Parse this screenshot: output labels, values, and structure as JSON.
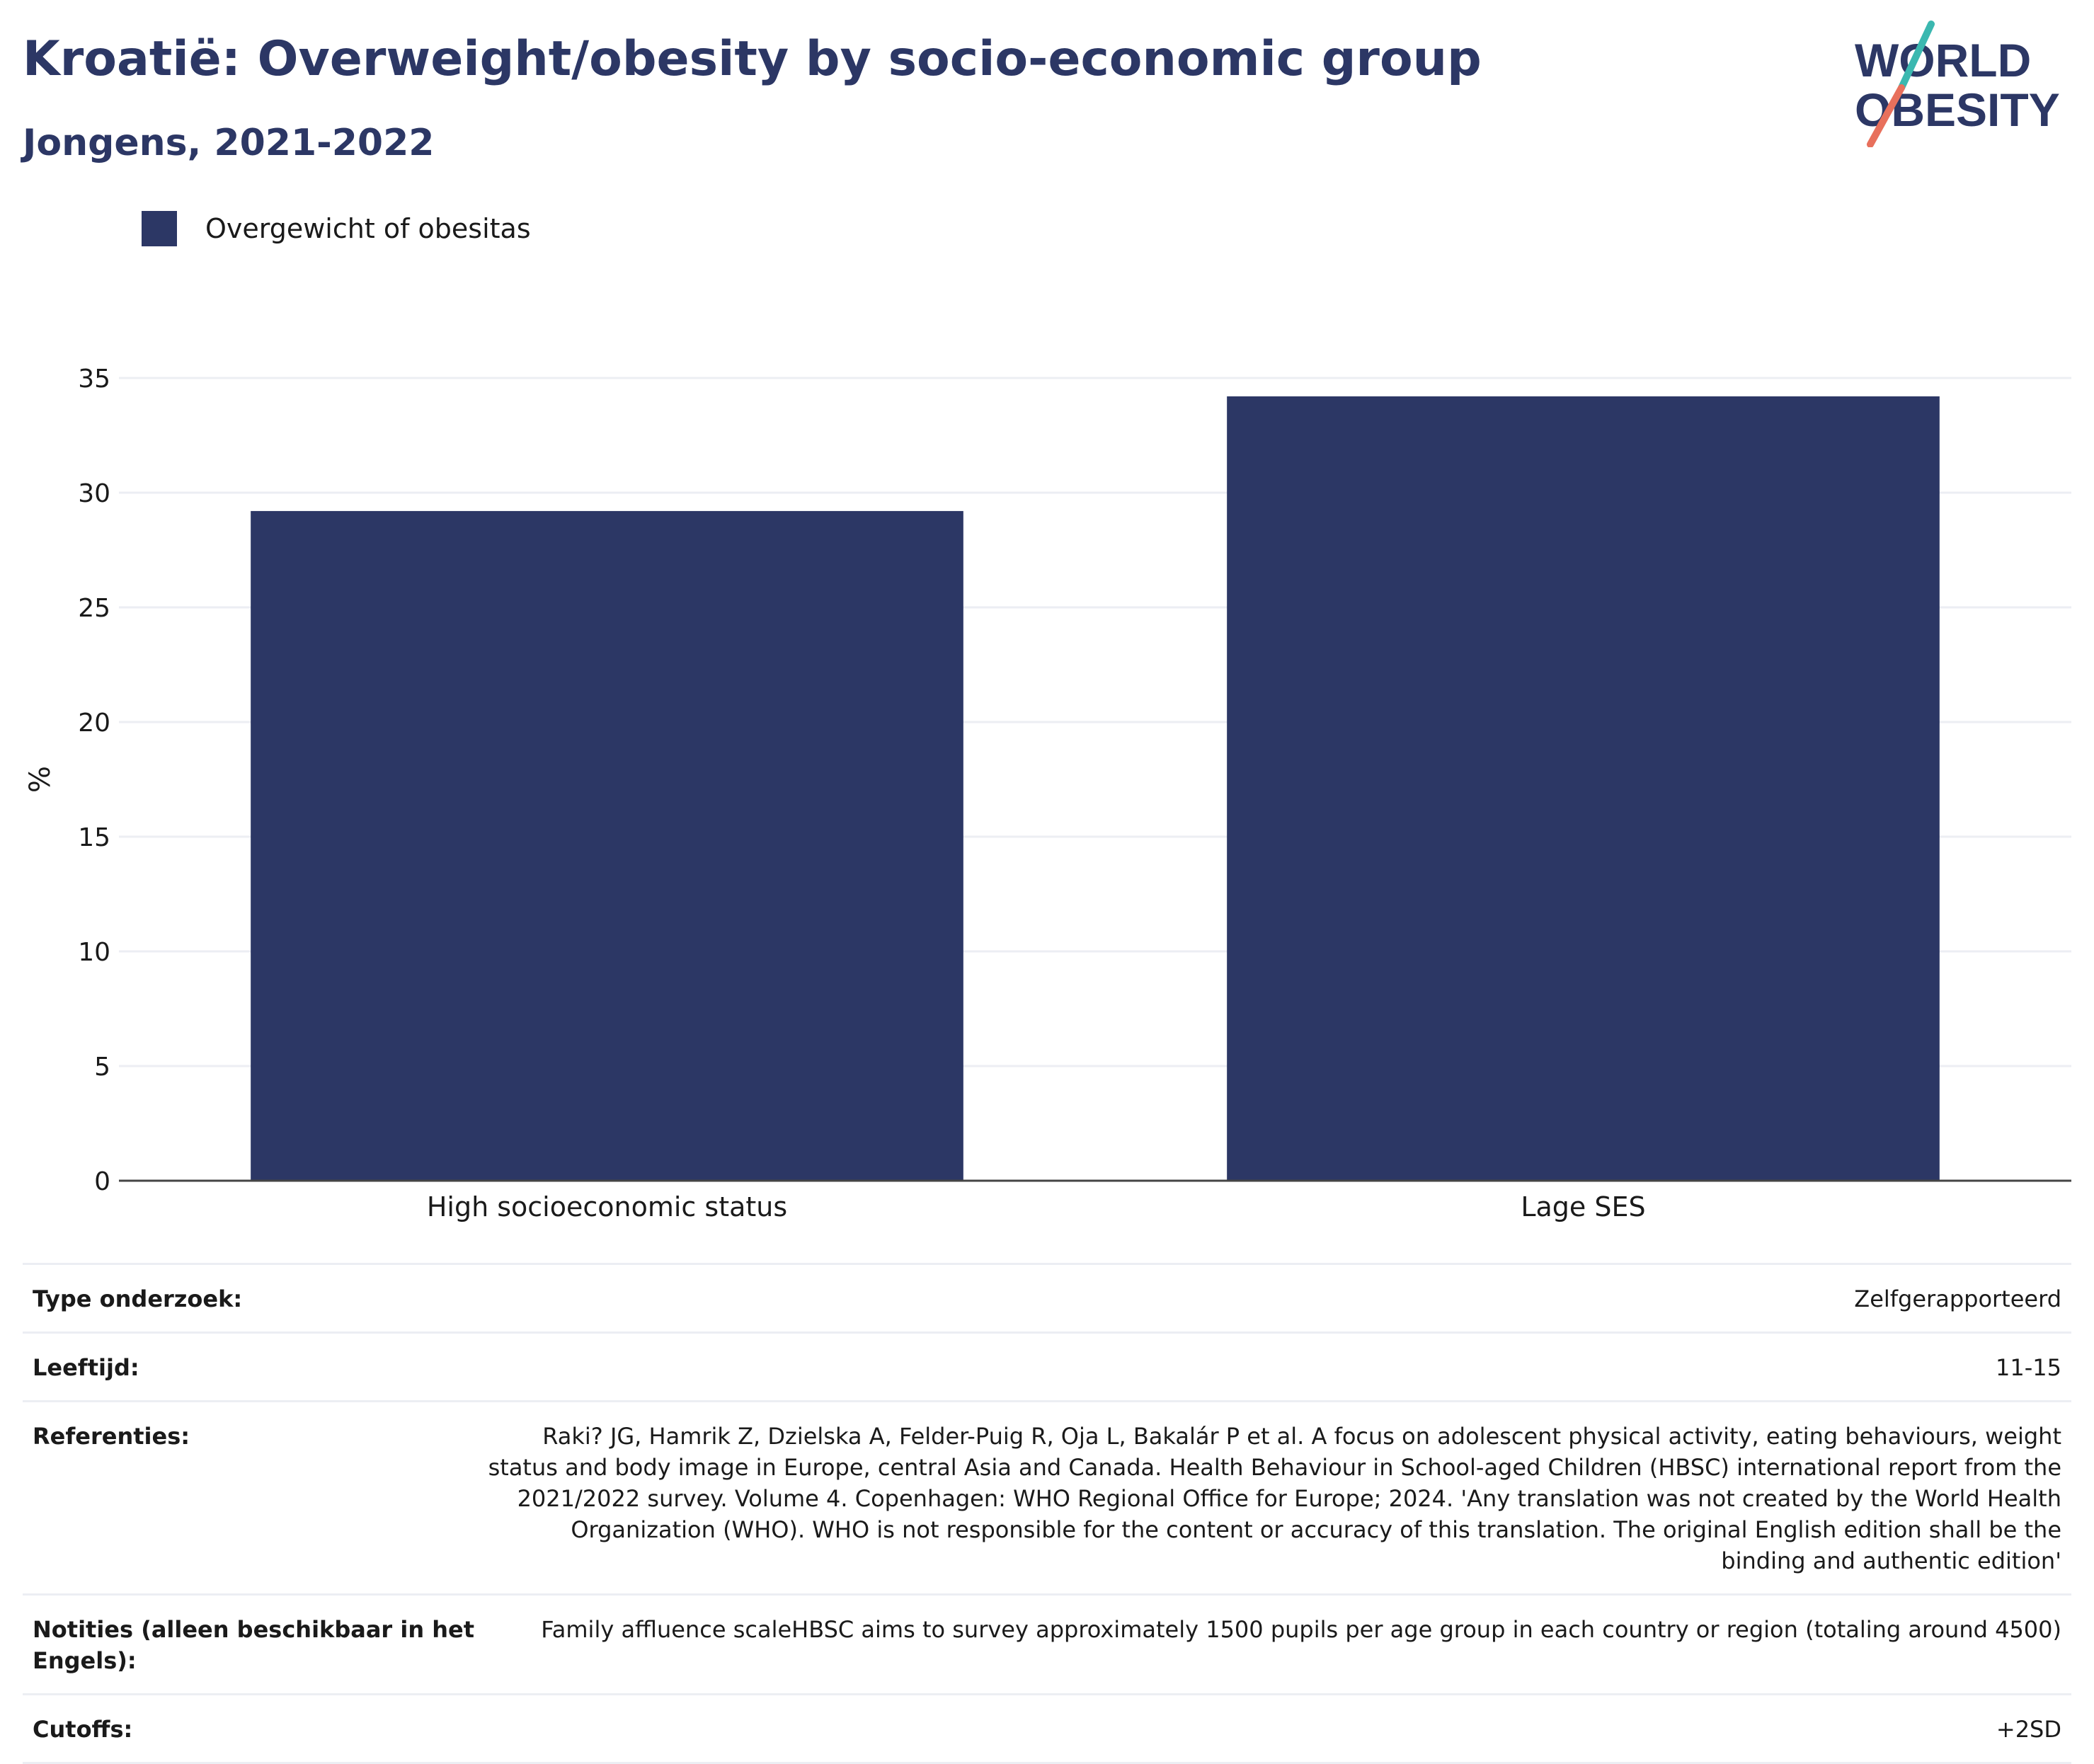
{
  "header": {
    "title": "Kroatië: Overweight/obesity by socio-economic group",
    "subtitle": "Jongens, 2021-2022"
  },
  "logo": {
    "line1": "WORLD",
    "line2": "OBESITY",
    "accent_teal": "#3bb8b0",
    "accent_coral": "#e8705c"
  },
  "legend": {
    "label": "Overgewicht of obesitas"
  },
  "colors": {
    "bar": "#2c3765",
    "text": "#2c3765",
    "grid": "#eceef3"
  },
  "chart_data": {
    "type": "bar",
    "categories": [
      "High socioeconomic status",
      "Lage SES"
    ],
    "series": [
      {
        "name": "Overgewicht of obesitas",
        "values": [
          29.2,
          34.2
        ]
      }
    ],
    "ylabel": "%",
    "ylim": [
      0,
      35
    ],
    "yticks": [
      0,
      5,
      10,
      15,
      20,
      25,
      30,
      35
    ],
    "grid": true,
    "legend_position": "top-left"
  },
  "meta": [
    {
      "key": "Type onderzoek:",
      "value": "Zelfgerapporteerd"
    },
    {
      "key": "Leeftijd:",
      "value": "11-15"
    },
    {
      "key": "Referenties:",
      "value": "Raki? JG, Hamrik Z, Dzielska A, Felder-Puig R, Oja L, Bakalár P et al. A focus on adolescent physical activity, eating behaviours, weight status and body image in Europe, central Asia and Canada. Health Behaviour in School-aged Children (HBSC) international report from the 2021/2022 survey. Volume 4. Copenhagen: WHO Regional Office for Europe; 2024. 'Any translation was not created by the World Health Organization (WHO). WHO is not responsible for the content or accuracy of this translation. The original English edition shall be the binding and authentic edition'"
    },
    {
      "key": "Notities (alleen beschikbaar in het Engels):",
      "value": "Family affluence scaleHBSC aims to survey approximately 1500 pupils per age group in each country or region (totaling around 4500)"
    },
    {
      "key": "Cutoffs:",
      "value": "+2SD"
    }
  ]
}
